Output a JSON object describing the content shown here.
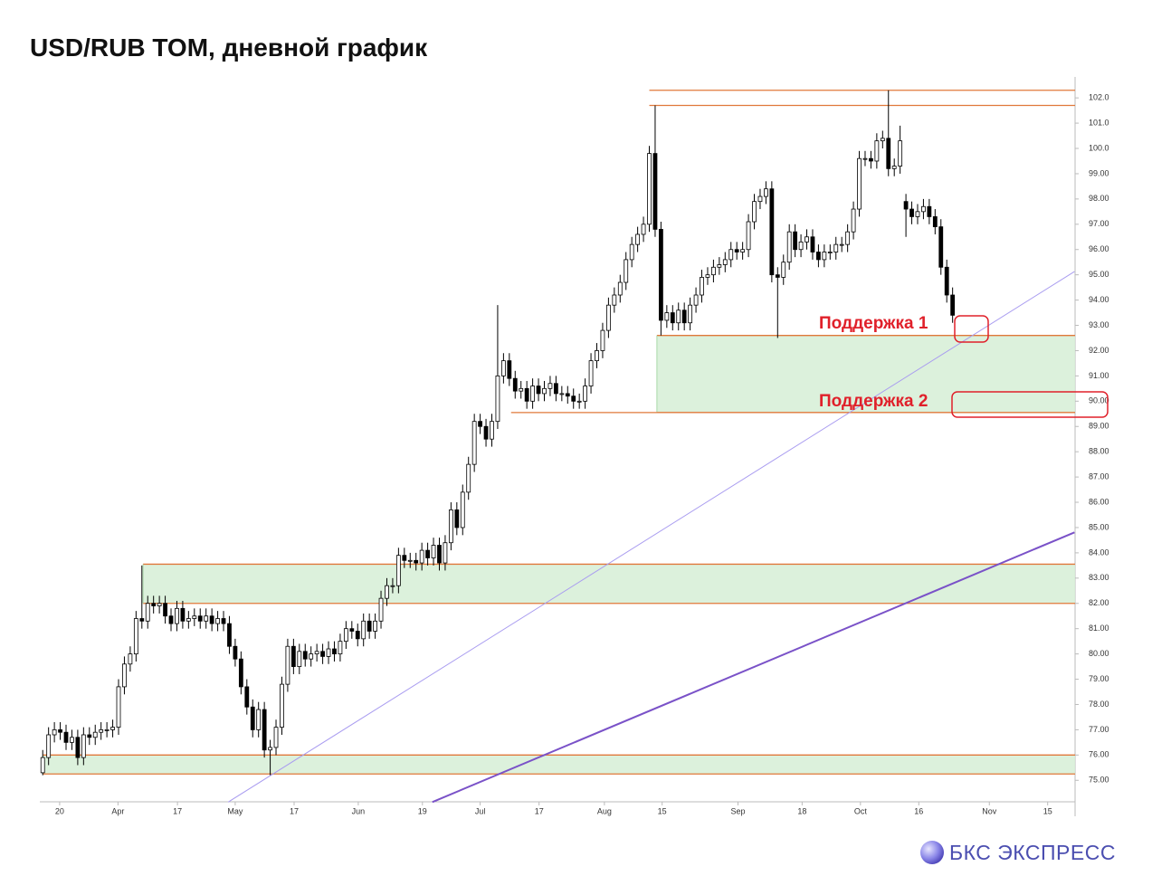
{
  "chart_data": {
    "type": "candlestick",
    "title": "USD/RUB TOM, дневной график",
    "open": [
      75.3,
      75.9,
      76.8,
      77.0,
      76.9,
      76.5,
      76.7,
      75.9,
      76.8,
      76.7,
      76.9,
      77.0,
      77.0,
      77.1,
      78.7,
      79.6,
      80.0,
      81.4,
      81.3,
      82.0,
      81.9,
      82.0,
      81.5,
      81.2,
      81.8,
      81.3,
      81.4,
      81.5,
      81.3,
      81.5,
      81.2,
      81.4,
      81.2,
      80.3,
      79.8,
      78.7,
      77.9,
      77.0,
      77.8,
      76.2,
      76.3,
      77.1,
      78.8,
      80.3,
      79.5,
      80.1,
      79.8,
      80.0,
      80.1,
      79.9,
      80.2,
      80.0,
      80.5,
      81.0,
      80.9,
      80.6,
      81.3,
      80.9,
      81.3,
      82.2,
      82.7,
      82.7,
      83.9,
      83.7,
      83.7,
      83.6,
      84.1,
      83.8,
      84.3,
      83.6,
      84.4,
      85.7,
      85.0,
      86.4,
      87.5,
      89.2,
      89.0,
      88.5,
      89.2,
      91.0,
      91.6,
      90.9,
      90.4,
      90.5,
      90.0,
      90.6,
      90.3,
      90.5,
      90.7,
      90.3,
      90.3,
      90.2,
      90.0,
      90.0,
      90.6,
      91.6,
      92.0,
      92.8,
      93.8,
      94.2,
      94.7,
      95.6,
      96.2,
      96.6,
      97.0,
      99.8,
      96.8,
      93.2,
      93.5,
      93.1,
      93.6,
      93.1,
      93.8,
      94.2,
      94.9,
      95.0,
      95.3,
      95.4,
      95.6,
      96.0,
      95.9,
      96.0,
      97.1,
      97.9,
      98.1,
      98.4,
      95.0,
      94.9,
      95.5,
      96.7,
      96.0,
      96.3,
      96.5,
      95.9,
      95.6,
      95.9,
      95.9,
      96.2,
      96.2,
      96.7,
      97.6,
      99.6,
      99.6,
      99.5,
      100.3,
      100.4,
      99.2,
      99.3,
      97.9,
      97.6,
      97.3,
      97.5,
      97.7,
      97.3,
      96.9,
      95.3,
      94.2
    ],
    "high": [
      76.2,
      77.1,
      77.3,
      77.3,
      77.2,
      77.0,
      77.0,
      77.1,
      77.1,
      77.2,
      77.3,
      77.3,
      77.4,
      79.0,
      79.9,
      80.3,
      81.7,
      83.5,
      82.3,
      82.3,
      82.3,
      82.3,
      81.8,
      82.1,
      82.1,
      81.7,
      81.8,
      81.8,
      81.8,
      81.8,
      81.7,
      81.7,
      81.5,
      80.6,
      80.1,
      79.0,
      78.2,
      78.1,
      78.1,
      76.6,
      77.4,
      79.1,
      80.6,
      80.6,
      80.4,
      80.4,
      80.3,
      80.4,
      80.4,
      80.5,
      80.5,
      80.8,
      81.3,
      81.3,
      81.2,
      81.6,
      81.6,
      81.6,
      82.5,
      83.0,
      83.0,
      84.2,
      84.2,
      84.0,
      84.0,
      84.4,
      84.4,
      84.6,
      84.6,
      84.7,
      86.0,
      86.0,
      86.7,
      87.8,
      89.5,
      89.5,
      89.3,
      89.5,
      93.8,
      91.9,
      91.9,
      91.2,
      90.8,
      90.8,
      90.9,
      90.9,
      90.8,
      91.0,
      91.0,
      90.6,
      90.6,
      90.5,
      90.3,
      90.9,
      91.9,
      92.3,
      93.1,
      94.1,
      94.5,
      95.0,
      95.9,
      96.5,
      96.9,
      97.3,
      100.1,
      101.7,
      97.1,
      93.8,
      93.8,
      93.9,
      93.9,
      94.1,
      94.5,
      95.2,
      95.3,
      95.6,
      95.7,
      95.9,
      96.3,
      96.3,
      96.3,
      97.4,
      98.2,
      98.4,
      98.7,
      98.7,
      95.3,
      95.8,
      97.0,
      97.0,
      96.6,
      96.8,
      96.8,
      96.2,
      96.2,
      96.2,
      96.5,
      96.5,
      97.0,
      97.9,
      99.9,
      99.9,
      99.9,
      100.6,
      100.7,
      102.3,
      99.6,
      100.9,
      98.2,
      97.9,
      97.8,
      98.0,
      98.0,
      97.6,
      97.2,
      95.6,
      94.5
    ],
    "low": [
      75.2,
      75.6,
      76.5,
      76.6,
      76.2,
      76.2,
      75.6,
      75.6,
      76.4,
      76.4,
      76.6,
      76.7,
      76.7,
      76.8,
      78.4,
      79.3,
      79.7,
      81.0,
      81.0,
      81.6,
      81.6,
      81.2,
      80.9,
      80.9,
      81.0,
      81.0,
      81.1,
      81.0,
      81.0,
      80.9,
      80.9,
      80.9,
      80.0,
      79.5,
      78.4,
      77.6,
      76.7,
      76.7,
      75.9,
      75.2,
      76.0,
      76.8,
      78.5,
      79.2,
      79.2,
      79.5,
      79.5,
      79.7,
      79.6,
      79.6,
      79.7,
      79.7,
      80.2,
      80.6,
      80.3,
      80.3,
      80.6,
      80.6,
      81.0,
      81.9,
      82.4,
      82.4,
      83.4,
      83.4,
      83.3,
      83.3,
      83.5,
      83.5,
      83.3,
      83.3,
      84.1,
      84.7,
      84.7,
      86.1,
      87.2,
      88.7,
      88.2,
      88.2,
      88.9,
      90.7,
      90.6,
      90.1,
      90.1,
      89.7,
      89.7,
      90.0,
      90.0,
      90.2,
      90.0,
      90.0,
      89.9,
      89.7,
      89.7,
      89.7,
      90.3,
      91.3,
      91.7,
      92.5,
      93.5,
      93.9,
      94.4,
      95.3,
      95.9,
      96.3,
      96.7,
      96.5,
      92.6,
      92.9,
      92.8,
      92.8,
      92.8,
      92.8,
      93.5,
      93.9,
      94.6,
      94.7,
      95.0,
      95.1,
      95.3,
      95.6,
      95.6,
      95.7,
      96.8,
      97.6,
      97.8,
      94.7,
      92.5,
      94.6,
      95.2,
      95.7,
      95.7,
      96.0,
      95.6,
      95.3,
      95.3,
      95.6,
      95.6,
      95.9,
      95.9,
      96.4,
      97.3,
      99.3,
      99.2,
      99.2,
      100.0,
      98.9,
      98.9,
      99.0,
      96.5,
      97.0,
      97.0,
      97.2,
      97.0,
      96.6,
      95.0,
      93.9,
      93.1
    ],
    "close": [
      75.9,
      76.8,
      77.0,
      76.9,
      76.5,
      76.7,
      75.9,
      76.8,
      76.7,
      76.9,
      77.0,
      77.0,
      77.1,
      78.7,
      79.6,
      80.0,
      81.4,
      81.3,
      82.0,
      81.9,
      82.0,
      81.5,
      81.2,
      81.8,
      81.3,
      81.4,
      81.5,
      81.3,
      81.5,
      81.2,
      81.4,
      81.2,
      80.3,
      79.8,
      78.7,
      77.9,
      77.0,
      77.8,
      76.2,
      76.3,
      77.1,
      78.8,
      80.3,
      79.5,
      80.1,
      79.8,
      80.0,
      80.1,
      79.9,
      80.2,
      80.0,
      80.5,
      81.0,
      80.9,
      80.6,
      81.3,
      80.9,
      81.3,
      82.2,
      82.7,
      82.7,
      83.9,
      83.7,
      83.7,
      83.6,
      84.1,
      83.8,
      84.3,
      83.6,
      84.4,
      85.7,
      85.0,
      86.4,
      87.5,
      89.2,
      89.0,
      88.5,
      89.2,
      91.0,
      91.6,
      90.9,
      90.4,
      90.5,
      90.0,
      90.6,
      90.3,
      90.5,
      90.7,
      90.3,
      90.3,
      90.2,
      90.0,
      90.0,
      90.6,
      91.6,
      92.0,
      92.8,
      93.8,
      94.2,
      94.7,
      95.6,
      96.2,
      96.6,
      97.0,
      99.8,
      96.8,
      93.2,
      93.5,
      93.1,
      93.6,
      93.1,
      93.8,
      94.2,
      94.9,
      95.0,
      95.3,
      95.4,
      95.6,
      96.0,
      95.9,
      96.0,
      97.1,
      97.9,
      98.1,
      98.4,
      95.0,
      94.9,
      95.5,
      96.7,
      96.0,
      96.3,
      96.5,
      95.9,
      95.6,
      95.9,
      95.9,
      96.2,
      96.2,
      96.7,
      97.6,
      99.6,
      99.6,
      99.5,
      100.3,
      100.4,
      99.2,
      99.3,
      100.3,
      97.6,
      97.3,
      97.5,
      97.7,
      97.3,
      96.9,
      95.3,
      94.2,
      93.4
    ],
    "up_color": "#ffffff",
    "down_color": "#000000",
    "xlim": [
      -0.5,
      177
    ],
    "xticks": [
      {
        "value": 2.9,
        "label": "20"
      },
      {
        "value": 12.9,
        "label": "Apr"
      },
      {
        "value": 23.1,
        "label": "17"
      },
      {
        "value": 33.0,
        "label": "May"
      },
      {
        "value": 43.1,
        "label": "17"
      },
      {
        "value": 54.1,
        "label": "Jun"
      },
      {
        "value": 65.1,
        "label": "19"
      },
      {
        "value": 75.0,
        "label": "Jul"
      },
      {
        "value": 85.1,
        "label": "17"
      },
      {
        "value": 96.3,
        "label": "Aug"
      },
      {
        "value": 106.2,
        "label": "15"
      },
      {
        "value": 119.2,
        "label": "Sep"
      },
      {
        "value": 130.2,
        "label": "18"
      },
      {
        "value": 140.2,
        "label": "Oct"
      },
      {
        "value": 150.2,
        "label": "16"
      },
      {
        "value": 162.3,
        "label": "Nov"
      },
      {
        "value": 172.3,
        "label": "15"
      }
    ],
    "ylim": [
      74.15,
      102.65
    ],
    "yticks": [
      {
        "value": 75,
        "label": "75.00"
      },
      {
        "value": 76,
        "label": "76.00"
      },
      {
        "value": 77,
        "label": "77.00"
      },
      {
        "value": 78,
        "label": "78.00"
      },
      {
        "value": 79,
        "label": "79.00"
      },
      {
        "value": 80,
        "label": "80.00"
      },
      {
        "value": 81,
        "label": "81.00"
      },
      {
        "value": 82,
        "label": "82.00"
      },
      {
        "value": 83,
        "label": "83.00"
      },
      {
        "value": 84,
        "label": "84.00"
      },
      {
        "value": 85,
        "label": "85.00"
      },
      {
        "value": 86,
        "label": "86.00"
      },
      {
        "value": 87,
        "label": "87.00"
      },
      {
        "value": 88,
        "label": "88.00"
      },
      {
        "value": 89,
        "label": "89.00"
      },
      {
        "value": 90,
        "label": "90.00"
      },
      {
        "value": 91,
        "label": "91.00"
      },
      {
        "value": 92,
        "label": "92.00"
      },
      {
        "value": 93,
        "label": "93.00"
      },
      {
        "value": 94,
        "label": "94.00"
      },
      {
        "value": 95,
        "label": "95.00"
      },
      {
        "value": 96,
        "label": "96.00"
      },
      {
        "value": 97,
        "label": "97.00"
      },
      {
        "value": 98,
        "label": "98.00"
      },
      {
        "value": 99,
        "label": "99.00"
      },
      {
        "value": 100,
        "label": "100.0"
      },
      {
        "value": 101,
        "label": "101.0"
      },
      {
        "value": 102,
        "label": "102.0"
      }
    ],
    "zones": [
      {
        "start": 105.3,
        "top": 92.6,
        "bottom": 89.55
      },
      {
        "start": 17.2,
        "top": 83.55,
        "bottom": 82.0
      },
      {
        "start": 0,
        "top": 76.0,
        "bottom": 75.25
      }
    ],
    "zone_color": "#d6efd6",
    "level_color": "#e0783a",
    "levels": [
      {
        "start": 104,
        "value": 102.3
      },
      {
        "start": 104,
        "value": 101.7
      },
      {
        "start": 80.3,
        "value": 89.55
      }
    ],
    "trendlines": [
      {
        "x": [
          31.8,
          176.9
        ],
        "y": [
          74.14,
          95.13
        ],
        "color": "#a99cf0",
        "width": 1
      },
      {
        "x": [
          66.8,
          176.9
        ],
        "y": [
          74.14,
          84.81
        ],
        "color": "#7a52c8",
        "width": 2
      }
    ],
    "annotations": [
      "Поддержка 1",
      "Поддержка 2"
    ]
  },
  "brand": "БКС ЭКСПРЕСС"
}
